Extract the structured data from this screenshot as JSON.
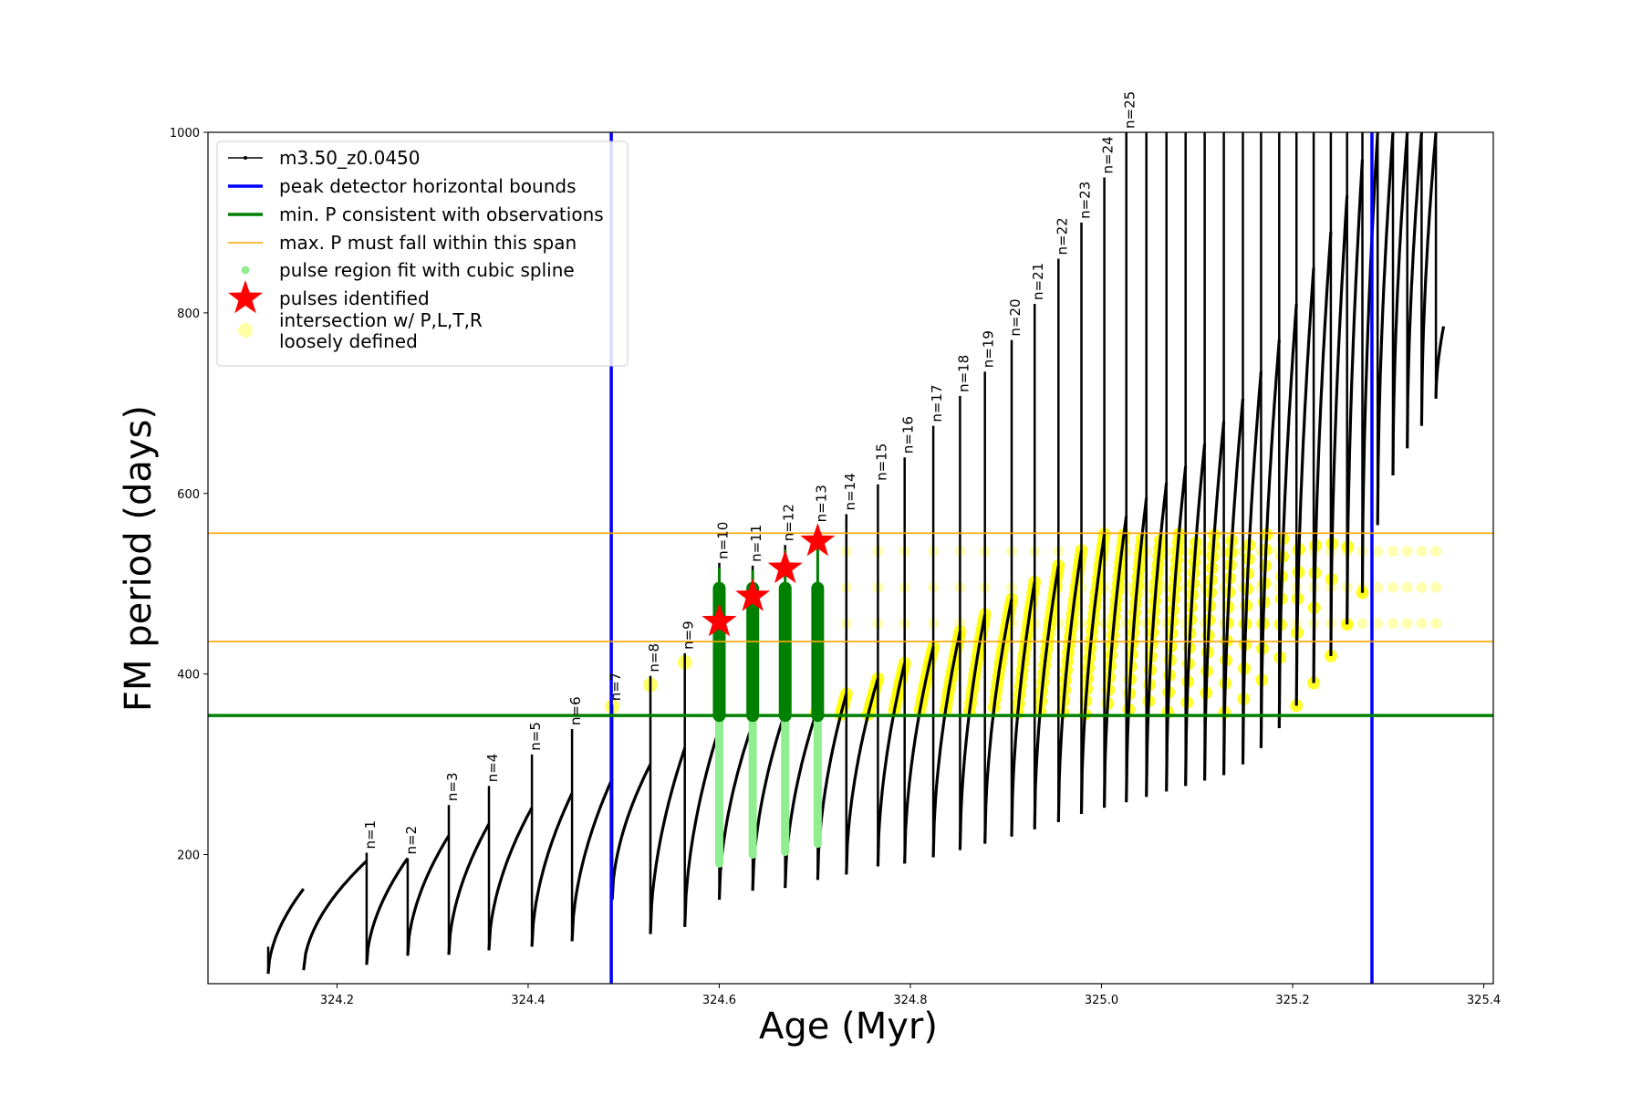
{
  "chart_data": {
    "type": "line",
    "xlabel": "Age (Myr)",
    "ylabel": "FM period (days)",
    "xlim": [
      324.065,
      325.41
    ],
    "ylim": [
      57,
      1000
    ],
    "xticks": [
      {
        "value": 324.2,
        "label": "324.2"
      },
      {
        "value": 324.4,
        "label": "324.4"
      },
      {
        "value": 324.6,
        "label": "324.6"
      },
      {
        "value": 324.8,
        "label": "324.8"
      },
      {
        "value": 325.0,
        "label": "325.0"
      },
      {
        "value": 325.2,
        "label": "325.2"
      },
      {
        "value": 325.4,
        "label": "325.4"
      }
    ],
    "yticks": [
      {
        "value": 200,
        "label": "200"
      },
      {
        "value": 400,
        "label": "400"
      },
      {
        "value": 600,
        "label": "600"
      },
      {
        "value": 800,
        "label": "800"
      },
      {
        "value": 1000,
        "label": "1000"
      }
    ],
    "grid": false,
    "legend_position": "top-left",
    "colors": {
      "track": "#000000",
      "bounds": "#0000ff",
      "min_p": "#008000",
      "max_p": "#ffa500",
      "spline": "#90ee90",
      "star": "#ff0000",
      "loose": "#ffff00"
    },
    "reference_lines": {
      "peak_detector_bounds_x": [
        324.487,
        325.283
      ],
      "min_period_y": 354,
      "max_period_span_y": [
        436,
        556
      ]
    },
    "series": [
      {
        "name": "m3.50_z0.0450",
        "role": "track"
      },
      {
        "name": "peak detector horizontal bounds",
        "role": "bounds"
      },
      {
        "name": "min. P consistent with observations",
        "role": "min_p"
      },
      {
        "name": "max. P must fall within this span",
        "role": "max_p"
      },
      {
        "name": "pulse region fit with cubic spline",
        "role": "spline"
      },
      {
        "name": "pulses identified",
        "role": "star"
      },
      {
        "name": "intersection w/ P,L,T,R",
        "name_line2": "loosely defined",
        "role": "loose"
      }
    ],
    "pulses": [
      {
        "label": "n=1",
        "age": 324.231,
        "peak": 202,
        "pre": 193,
        "min": 78
      },
      {
        "label": "n=2",
        "age": 324.274,
        "peak": 196,
        "pre": 196,
        "min": 88
      },
      {
        "label": "n=3",
        "age": 324.317,
        "peak": 255,
        "pre": 221,
        "min": 89
      },
      {
        "label": "n=4",
        "age": 324.359,
        "peak": 276,
        "pre": 234,
        "min": 94
      },
      {
        "label": "n=5",
        "age": 324.404,
        "peak": 311,
        "pre": 252,
        "min": 98
      },
      {
        "label": "n=6",
        "age": 324.446,
        "peak": 339,
        "pre": 268,
        "min": 104
      },
      {
        "label": "n=7",
        "age": 324.488,
        "peak": 366,
        "pre": 284,
        "min": 150
      },
      {
        "label": "n=8",
        "age": 324.528,
        "peak": 398,
        "pre": 300,
        "min": 112
      },
      {
        "label": "n=9",
        "age": 324.564,
        "peak": 423,
        "pre": 318,
        "min": 120
      },
      {
        "label": "n=10",
        "age": 324.6,
        "peak": 523,
        "pre": 340,
        "min": 150
      },
      {
        "label": "n=11",
        "age": 324.635,
        "peak": 520,
        "pre": 345,
        "min": 160
      },
      {
        "label": "n=12",
        "age": 324.669,
        "peak": 543,
        "pre": 358,
        "min": 163
      },
      {
        "label": "n=13",
        "age": 324.703,
        "peak": 564,
        "pre": 362,
        "min": 172
      },
      {
        "label": "n=14",
        "age": 324.733,
        "peak": 577,
        "pre": 378,
        "min": 178
      },
      {
        "label": "n=15",
        "age": 324.766,
        "peak": 610,
        "pre": 395,
        "min": 187
      },
      {
        "label": "n=16",
        "age": 324.794,
        "peak": 640,
        "pre": 412,
        "min": 190
      },
      {
        "label": "n=17",
        "age": 324.824,
        "peak": 675,
        "pre": 430,
        "min": 197
      },
      {
        "label": "n=18",
        "age": 324.852,
        "peak": 708,
        "pre": 447,
        "min": 205
      },
      {
        "label": "n=19",
        "age": 324.878,
        "peak": 735,
        "pre": 466,
        "min": 212
      },
      {
        "label": "n=20",
        "age": 324.906,
        "peak": 770,
        "pre": 483,
        "min": 220
      },
      {
        "label": "n=21",
        "age": 324.93,
        "peak": 810,
        "pre": 502,
        "min": 228
      },
      {
        "label": "n=22",
        "age": 324.955,
        "peak": 860,
        "pre": 520,
        "min": 236
      },
      {
        "label": "n=23",
        "age": 324.979,
        "peak": 900,
        "pre": 537,
        "min": 245
      },
      {
        "label": "n=24",
        "age": 325.003,
        "peak": 950,
        "pre": 555,
        "min": 252
      },
      {
        "label": "n=25",
        "age": 325.026,
        "peak": 1000,
        "pre": 575,
        "min": 258
      },
      {
        "label": "",
        "age": 325.047,
        "peak": 1000,
        "pre": 595,
        "min": 264
      },
      {
        "label": "",
        "age": 325.068,
        "peak": 1000,
        "pre": 612,
        "min": 270
      },
      {
        "label": "",
        "age": 325.088,
        "peak": 1000,
        "pre": 630,
        "min": 276
      },
      {
        "label": "",
        "age": 325.108,
        "peak": 1000,
        "pre": 655,
        "min": 282
      },
      {
        "label": "",
        "age": 325.128,
        "peak": 1000,
        "pre": 680,
        "min": 288
      },
      {
        "label": "",
        "age": 325.148,
        "peak": 1000,
        "pre": 705,
        "min": 300
      },
      {
        "label": "",
        "age": 325.167,
        "peak": 1000,
        "pre": 735,
        "min": 318
      },
      {
        "label": "",
        "age": 325.186,
        "peak": 1000,
        "pre": 770,
        "min": 340
      },
      {
        "label": "",
        "age": 325.204,
        "peak": 1000,
        "pre": 810,
        "min": 365
      },
      {
        "label": "",
        "age": 325.222,
        "peak": 1000,
        "pre": 850,
        "min": 390
      },
      {
        "label": "",
        "age": 325.24,
        "peak": 1000,
        "pre": 890,
        "min": 420
      },
      {
        "label": "",
        "age": 325.257,
        "peak": 1000,
        "pre": 930,
        "min": 455
      },
      {
        "label": "",
        "age": 325.273,
        "peak": 1000,
        "pre": 970,
        "min": 490
      },
      {
        "label": "",
        "age": 325.289,
        "peak": 1000,
        "pre": 1000,
        "min": 565
      },
      {
        "label": "",
        "age": 325.305,
        "peak": 1000,
        "pre": 1000,
        "min": 620
      },
      {
        "label": "",
        "age": 325.32,
        "peak": 1000,
        "pre": 1000,
        "min": 650
      },
      {
        "label": "",
        "age": 325.335,
        "peak": 1000,
        "pre": 1000,
        "min": 675
      },
      {
        "label": "",
        "age": 325.35,
        "peak": 1000,
        "pre": 1000,
        "min": 705
      }
    ],
    "first_segment": {
      "start_age": 324.128,
      "start": 68,
      "pre": 162
    },
    "second_segment": {
      "age": 324.165,
      "pre": 150,
      "min": 72
    },
    "identified_pulses": [
      {
        "age": 324.6,
        "period": 458
      },
      {
        "age": 324.635,
        "period": 486
      },
      {
        "age": 324.669,
        "period": 517
      },
      {
        "age": 324.703,
        "period": 547
      }
    ]
  }
}
